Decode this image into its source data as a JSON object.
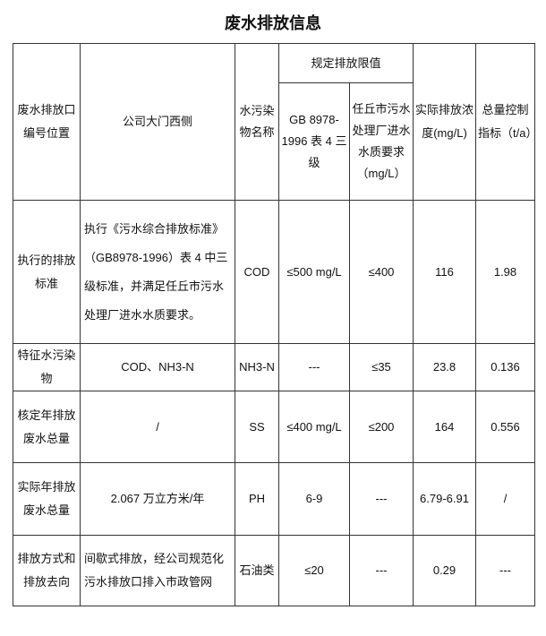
{
  "title": "废水排放信息",
  "header": {
    "outlet_label": "废水排放口编号位置",
    "outlet_value": "公司大门西侧",
    "pollutant_name": "水污染物名称",
    "limit_group": "规定排放限值",
    "limit_gb": "GB 8978-1996 表 4 三级",
    "limit_plant": "任丘市污水处理厂进水水质要求（mg/L）",
    "actual": "实际排放浓度(mg/L)",
    "total": "总量控制指标（t/a）"
  },
  "rows": [
    {
      "label": "执行的排放标准",
      "desc": "执行《污水综合排放标准》（GB8978-1996）表 4 中三级标准，并满足任丘市污水处理厂进水水质要求。",
      "pollutant": "COD",
      "gb": "≤500 mg/L",
      "plant": "≤400",
      "actual": "116",
      "total": "1.98"
    },
    {
      "label": "特征水污染物",
      "desc": "COD、NH3-N",
      "pollutant": "NH3-N",
      "gb": "---",
      "plant": "≤35",
      "actual": "23.8",
      "total": "0.136"
    },
    {
      "label": "核定年排放废水总量",
      "desc": "/",
      "pollutant": "SS",
      "gb": "≤400 mg/L",
      "plant": "≤200",
      "actual": "164",
      "total": "0.556"
    },
    {
      "label": "实际年排放废水总量",
      "desc": "2.067 万立方米/年",
      "pollutant": "PH",
      "gb": "6-9",
      "plant": "---",
      "actual": "6.79-6.91",
      "total": "/"
    },
    {
      "label": "排放方式和排放去向",
      "desc": "间歇式排放，经公司规范化污水排放口排入市政管网",
      "pollutant": "石油类",
      "gb": "≤20",
      "plant": "---",
      "actual": "0.29",
      "total": "---"
    }
  ]
}
